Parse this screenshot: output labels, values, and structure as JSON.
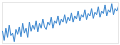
{
  "chart_data": {
    "type": "line",
    "color": "#3a86cf",
    "tick_labels": false,
    "grid": false,
    "x": [
      0,
      1,
      2,
      3,
      4,
      5,
      6,
      7,
      8,
      9,
      10,
      11,
      12,
      13,
      14,
      15,
      16,
      17,
      18,
      19,
      20,
      21,
      22,
      23,
      24,
      25,
      26,
      27,
      28,
      29,
      30,
      31,
      32,
      33,
      34,
      35,
      36,
      37,
      38,
      39,
      40,
      41,
      42,
      43,
      44,
      45,
      46,
      47,
      48,
      49,
      50,
      51,
      52,
      53,
      54,
      55,
      56,
      57,
      58,
      59,
      60,
      61,
      62,
      63,
      64,
      65,
      66,
      67,
      68,
      69
    ],
    "values": [
      45,
      30,
      50,
      35,
      55,
      38,
      42,
      28,
      48,
      40,
      52,
      36,
      58,
      42,
      50,
      35,
      60,
      45,
      55,
      48,
      62,
      44,
      58,
      50,
      65,
      52,
      48,
      60,
      55,
      68,
      50,
      62,
      58,
      70,
      55,
      65,
      60,
      72,
      58,
      68,
      62,
      75,
      60,
      70,
      65,
      78,
      62,
      72,
      68,
      80,
      64,
      74,
      70,
      82,
      66,
      76,
      72,
      85,
      68,
      78,
      74,
      88,
      70,
      80,
      76,
      90,
      72,
      82,
      78,
      86
    ],
    "xlim": [
      0,
      69
    ],
    "ylim": [
      25,
      92
    ],
    "xticks": [],
    "yticks": []
  }
}
